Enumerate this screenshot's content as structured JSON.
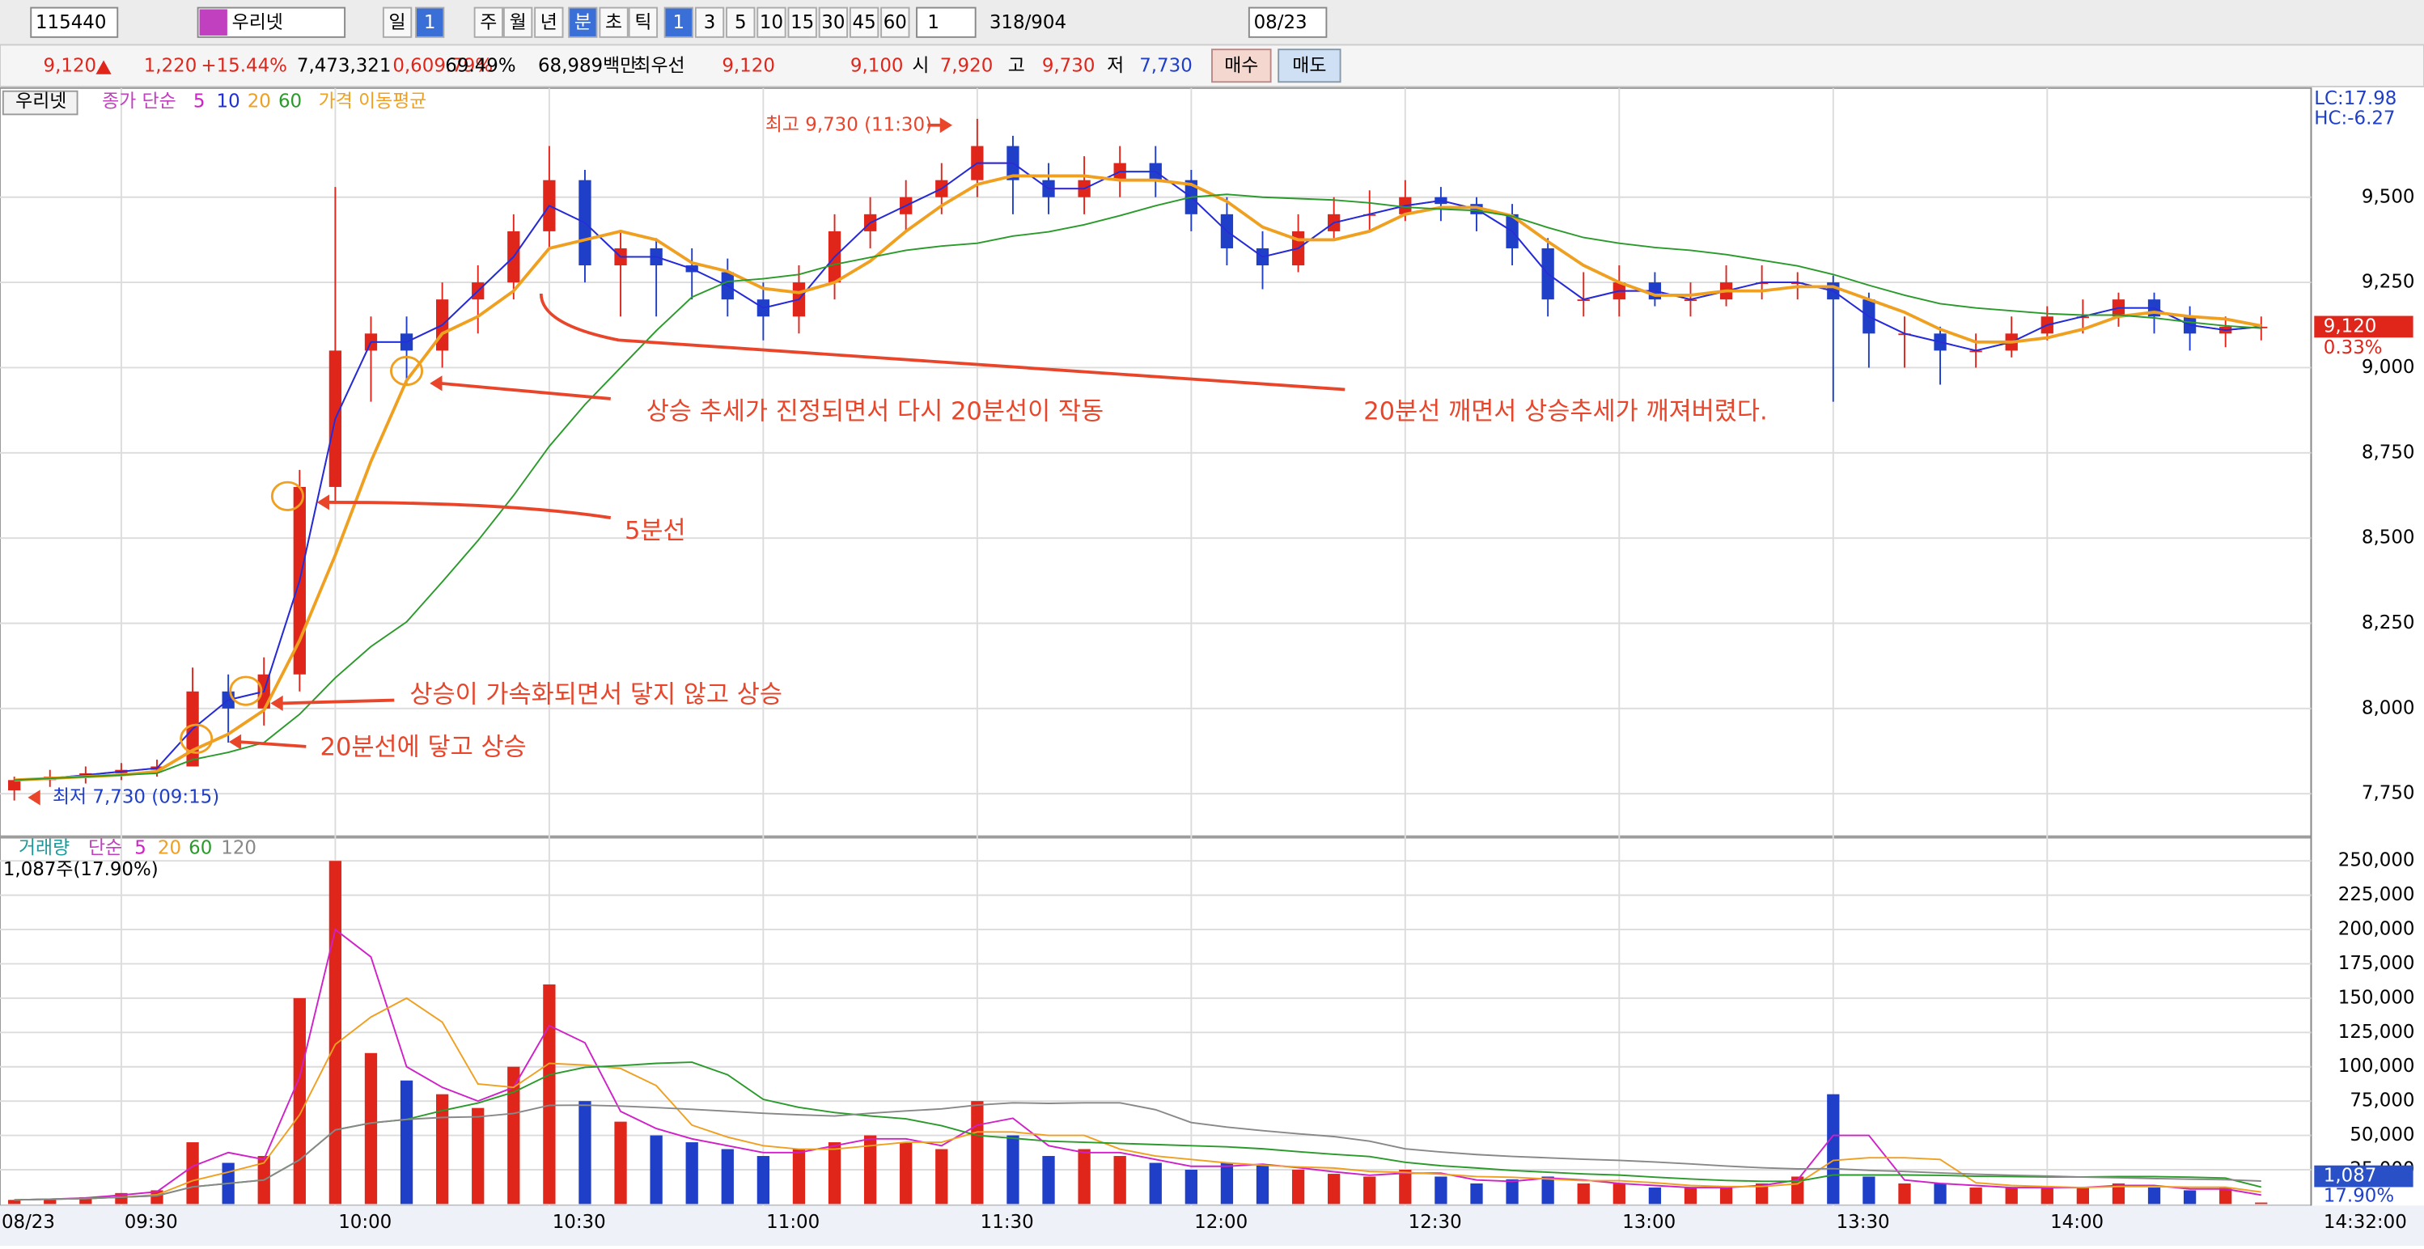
{
  "toolbar": {
    "code": "115440",
    "name": "우리넷",
    "period_buttons": [
      "일",
      "1",
      "주",
      "월",
      "년",
      "분",
      "초",
      "틱"
    ],
    "minute_buttons": [
      "1",
      "3",
      "5",
      "10",
      "15",
      "30",
      "45",
      "60"
    ],
    "count": "1",
    "position": "318/904",
    "date": "08/23"
  },
  "quote": {
    "price": "9,120",
    "change": "1,220",
    "change_pct": "+15.44%",
    "volume": "7,473,321",
    "volume_ratio": "0,609.79%",
    "turnover": "69.49%",
    "amount": "68,989백만",
    "best_label": "최우선",
    "ask": "9,120",
    "bid": "9,100",
    "open_label": "시",
    "open": "7,920",
    "high_label": "고",
    "high": "9,730",
    "low_label": "저",
    "low": "7,730",
    "buy": "매수",
    "sell": "매도"
  },
  "chart_data": [
    {
      "type": "candlestick",
      "title": "우리넷",
      "ma_label": "종가 단순",
      "ma_title": "가격 이동평균",
      "ma": [
        {
          "name": "5",
          "color": "#d020c8"
        },
        {
          "name": "10",
          "color": "#1c2fd8"
        },
        {
          "name": "20",
          "color": "#f0a020"
        },
        {
          "name": "60",
          "color": "#2a9a2a"
        }
      ],
      "up_color": "#e0251b",
      "down_color": "#1f3fc8",
      "x": [
        "09:15",
        "09:20",
        "09:25",
        "09:30",
        "09:35",
        "09:40",
        "09:45",
        "09:50",
        "09:55",
        "10:00",
        "10:05",
        "10:10",
        "10:15",
        "10:20",
        "10:25",
        "10:30",
        "10:35",
        "10:40",
        "10:45",
        "10:50",
        "10:55",
        "11:00",
        "11:05",
        "11:10",
        "11:15",
        "11:20",
        "11:25",
        "11:30",
        "11:35",
        "11:40",
        "11:45",
        "11:50",
        "11:55",
        "12:00",
        "12:05",
        "12:10",
        "12:15",
        "12:20",
        "12:25",
        "12:30",
        "12:35",
        "12:40",
        "12:45",
        "12:50",
        "12:55",
        "13:00",
        "13:05",
        "13:10",
        "13:15",
        "13:20",
        "13:25",
        "13:30",
        "13:35",
        "13:40",
        "13:45",
        "13:50",
        "13:55",
        "14:00",
        "14:05",
        "14:10",
        "14:15",
        "14:20",
        "14:25",
        "14:30"
      ],
      "open": [
        7760,
        7790,
        7800,
        7810,
        7820,
        7830,
        8050,
        8000,
        8100,
        8650,
        9050,
        9100,
        9050,
        9200,
        9250,
        9400,
        9550,
        9300,
        9350,
        9300,
        9280,
        9200,
        9150,
        9250,
        9400,
        9450,
        9500,
        9550,
        9650,
        9550,
        9500,
        9550,
        9600,
        9550,
        9450,
        9350,
        9300,
        9400,
        9450,
        9450,
        9500,
        9480,
        9450,
        9350,
        9200,
        9200,
        9250,
        9200,
        9200,
        9250,
        9250,
        9250,
        9200,
        9100,
        9100,
        9050,
        9050,
        9100,
        9150,
        9150,
        9200,
        9150,
        9100,
        9120
      ],
      "high": [
        7800,
        7820,
        7830,
        7840,
        7850,
        8120,
        8100,
        8150,
        8700,
        9530,
        9150,
        9150,
        9250,
        9300,
        9450,
        9650,
        9580,
        9400,
        9380,
        9350,
        9320,
        9250,
        9300,
        9450,
        9500,
        9550,
        9600,
        9730,
        9680,
        9600,
        9620,
        9650,
        9650,
        9580,
        9500,
        9400,
        9450,
        9500,
        9520,
        9550,
        9530,
        9500,
        9480,
        9380,
        9280,
        9300,
        9280,
        9250,
        9300,
        9300,
        9280,
        9270,
        9220,
        9150,
        9120,
        9100,
        9150,
        9180,
        9200,
        9220,
        9220,
        9180,
        9150,
        9150
      ],
      "low": [
        7730,
        7770,
        7780,
        7790,
        7800,
        7830,
        7900,
        7950,
        8050,
        8600,
        8900,
        8950,
        9000,
        9100,
        9200,
        9350,
        9250,
        9150,
        9150,
        9200,
        9150,
        9080,
        9100,
        9200,
        9350,
        9400,
        9450,
        9500,
        9450,
        9450,
        9450,
        9500,
        9500,
        9400,
        9300,
        9230,
        9280,
        9380,
        9400,
        9430,
        9430,
        9400,
        9300,
        9150,
        9150,
        9150,
        9180,
        9150,
        9180,
        9200,
        9200,
        8900,
        9000,
        9000,
        8950,
        9000,
        9030,
        9080,
        9100,
        9120,
        9100,
        9050,
        9060,
        9080
      ],
      "close": [
        7790,
        7800,
        7810,
        7820,
        7830,
        8050,
        8000,
        8100,
        8650,
        9050,
        9100,
        9050,
        9200,
        9250,
        9400,
        9550,
        9300,
        9350,
        9300,
        9280,
        9200,
        9150,
        9250,
        9400,
        9450,
        9500,
        9550,
        9650,
        9550,
        9500,
        9550,
        9600,
        9550,
        9450,
        9350,
        9300,
        9400,
        9450,
        9450,
        9500,
        9480,
        9450,
        9350,
        9200,
        9200,
        9250,
        9200,
        9200,
        9250,
        9250,
        9250,
        9200,
        9100,
        9100,
        9050,
        9050,
        9100,
        9150,
        9150,
        9200,
        9150,
        9100,
        9120,
        9120
      ],
      "xlim": [
        "09:13",
        "14:37"
      ],
      "ylim": [
        7630,
        9820
      ],
      "yticks": [
        {
          "value": 7750,
          "label": "7,750"
        },
        {
          "value": 8000,
          "label": "8,000"
        },
        {
          "value": 8250,
          "label": "8,250"
        },
        {
          "value": 8500,
          "label": "8,500"
        },
        {
          "value": 8750,
          "label": "8,750"
        },
        {
          "value": 9000,
          "label": "9,000"
        },
        {
          "value": 9250,
          "label": "9,250"
        },
        {
          "value": 9500,
          "label": "9,500"
        }
      ],
      "last_price": "9,120",
      "last_pct": "0.33%",
      "lc": "LC:17.98",
      "hc": "HC:-6.27",
      "annotations": [
        "최고 9,730 (11:30)",
        "최저 7,730 (09:15)",
        "상승 추세가 진정되면서 다시 20분선이 작동",
        "20분선 깨면서 상승추세가 깨져버렸다.",
        "5분선",
        "상승이 가속화되면서 닿지 않고 상승",
        "20분선에 닿고 상승"
      ],
      "annotation_color": "#e8452a"
    },
    {
      "type": "bar",
      "title": "거래량",
      "ma_label": "단순",
      "info": "1,087주(17.90%)",
      "ma": [
        {
          "name": "5",
          "color": "#d020c8"
        },
        {
          "name": "20",
          "color": "#f0a020"
        },
        {
          "name": "60",
          "color": "#2a9a2a"
        },
        {
          "name": "120",
          "color": "#888888"
        }
      ],
      "values": [
        3000,
        4000,
        5000,
        8000,
        10000,
        45000,
        30000,
        35000,
        150000,
        250000,
        110000,
        90000,
        80000,
        70000,
        100000,
        160000,
        75000,
        60000,
        50000,
        45000,
        40000,
        35000,
        40000,
        45000,
        50000,
        45000,
        40000,
        75000,
        50000,
        35000,
        40000,
        35000,
        30000,
        25000,
        30000,
        28000,
        25000,
        22000,
        20000,
        25000,
        20000,
        15000,
        18000,
        20000,
        15000,
        15000,
        12000,
        12000,
        12000,
        15000,
        20000,
        80000,
        20000,
        15000,
        15000,
        12000,
        12000,
        12000,
        12000,
        15000,
        12000,
        10000,
        12000,
        1087
      ],
      "ylim": [
        0,
        263500
      ],
      "yticks": [
        {
          "value": 25000,
          "label": "25,000"
        },
        {
          "value": 50000,
          "label": "50,000"
        },
        {
          "value": 75000,
          "label": "75,000"
        },
        {
          "value": 100000,
          "label": "100,000"
        },
        {
          "value": 125000,
          "label": "125,000"
        },
        {
          "value": 150000,
          "label": "150,000"
        },
        {
          "value": 175000,
          "label": "175,000"
        },
        {
          "value": 200000,
          "label": "200,000"
        },
        {
          "value": 225000,
          "label": "225,000"
        },
        {
          "value": 250000,
          "label": "250,000"
        }
      ],
      "last_label": "1,087",
      "last_pct": "17.90%",
      "xticks": [
        "09:30",
        "10:00",
        "10:30",
        "11:00",
        "11:30",
        "12:00",
        "12:30",
        "13:00",
        "13:30",
        "14:00"
      ],
      "date": "08/23",
      "time": "14:32:00"
    }
  ]
}
